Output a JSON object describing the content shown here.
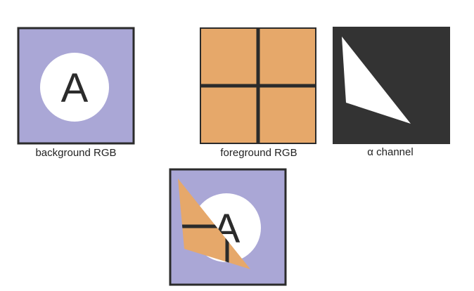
{
  "panels": {
    "background": {
      "caption": "background RGB",
      "letter": "A"
    },
    "foreground": {
      "caption": "foreground RGB"
    },
    "alpha": {
      "caption": "α channel"
    },
    "composite": {
      "letter": "A"
    }
  },
  "colors": {
    "background_fill": "#aaa7d6",
    "circle_fill": "#ffffff",
    "foreground_fill": "#e6a86a",
    "alpha_fill": "#333333",
    "alpha_shape_fill": "#ffffff",
    "stroke": "#2b2b2b"
  }
}
